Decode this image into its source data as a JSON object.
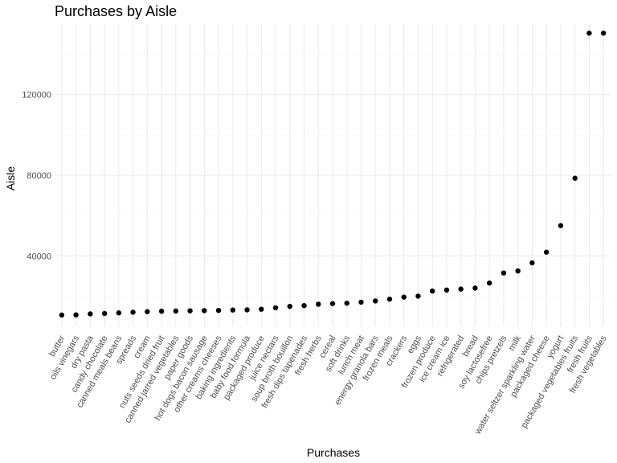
{
  "chart_data": {
    "type": "scatter",
    "title": "Purchases by Aisle",
    "xlabel": "Purchases",
    "ylabel": "Aisle",
    "grid": true,
    "legend": "none",
    "ylim": [
      5000,
      155000
    ],
    "yticks": [
      40000,
      80000,
      120000
    ],
    "ytick_labels": [
      "40000",
      "80000",
      "120000"
    ],
    "point_color": "#000000",
    "categories": [
      "butter",
      "oils vinegars",
      "dry pasta",
      "candy chocolate",
      "canned meals beans",
      "spreads",
      "cream",
      "nuts seeds dried fruit",
      "canned jarred vegetables",
      "paper goods",
      "hot dogs bacon sausage",
      "other creams cheeses",
      "baking ingredients",
      "baby food formula",
      "packaged produce",
      "juice nectars",
      "soup broth bouillon",
      "fresh dips tapenades",
      "fresh herbs",
      "cereal",
      "soft drinks",
      "lunch meat",
      "energy granola bars",
      "frozen meals",
      "crackers",
      "eggs",
      "frozen produce",
      "ice cream ice",
      "refrigerated",
      "bread",
      "soy lactosefree",
      "chips pretzels",
      "milk",
      "water seltzer sparkling water",
      "packaged cheese",
      "yogurt",
      "packaged vegetables fruits",
      "fresh fruits",
      "fresh vegetables"
    ],
    "values": [
      10600,
      10700,
      11200,
      11400,
      11700,
      12000,
      12300,
      12500,
      12600,
      12700,
      12800,
      12900,
      13100,
      13200,
      13500,
      14200,
      14900,
      15300,
      16000,
      16300,
      16500,
      17000,
      17600,
      18500,
      19500,
      20000,
      22500,
      23000,
      23500,
      24000,
      26500,
      31500,
      32500,
      36500,
      41800,
      55000,
      78500,
      150500,
      150500
    ]
  }
}
